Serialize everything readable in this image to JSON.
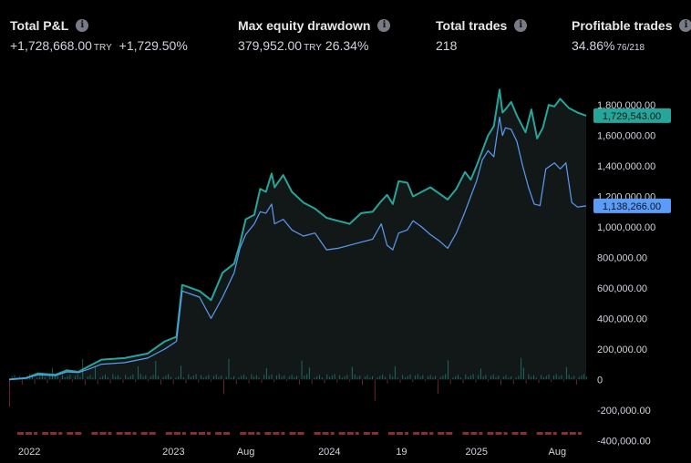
{
  "stats": {
    "total_pl": {
      "label": "Total P&L",
      "value": "+1,728,668.00",
      "currency": "TRY",
      "percent": "+1,729.50%"
    },
    "max_drawdown": {
      "label": "Max equity drawdown",
      "value": "379,952.00",
      "currency": "TRY",
      "percent": "26.34%"
    },
    "total_trades": {
      "label": "Total trades",
      "value": "218"
    },
    "profitable_trades": {
      "label": "Profitable trades",
      "value": "34.86%",
      "fraction": "76/218"
    }
  },
  "info_glyph": "i",
  "chart_data": {
    "type": "line",
    "y_tick_labels": [
      "1,800,000.00",
      "1,600,000.00",
      "1,400,000.00",
      "1,200,000.00",
      "1,000,000.00",
      "800,000.00",
      "600,000.00",
      "400,000.00",
      "200,000.00",
      "0",
      "-200,000.00",
      "-400,000.00"
    ],
    "y_ticks": [
      1800000,
      1600000,
      1400000,
      1200000,
      1000000,
      800000,
      600000,
      400000,
      200000,
      0,
      -200000,
      -400000
    ],
    "ylim": [
      -440000,
      1950000
    ],
    "x_tick_labels": [
      {
        "label": "2022",
        "t": 0.035
      },
      {
        "label": "2023",
        "t": 0.285
      },
      {
        "label": "Aug",
        "t": 0.41
      },
      {
        "label": "2024",
        "t": 0.555
      },
      {
        "label": "19",
        "t": 0.68
      },
      {
        "label": "2025",
        "t": 0.81
      },
      {
        "label": "Aug",
        "t": 0.95
      }
    ],
    "series": [
      {
        "color": "#26a69a",
        "last_value_label": "1,729,543.00",
        "values": [
          [
            0,
            0
          ],
          [
            0.03,
            10000
          ],
          [
            0.05,
            40000
          ],
          [
            0.08,
            30000
          ],
          [
            0.1,
            60000
          ],
          [
            0.12,
            50000
          ],
          [
            0.14,
            90000
          ],
          [
            0.16,
            130000
          ],
          [
            0.2,
            140000
          ],
          [
            0.24,
            170000
          ],
          [
            0.27,
            250000
          ],
          [
            0.29,
            280000
          ],
          [
            0.3,
            620000
          ],
          [
            0.33,
            580000
          ],
          [
            0.35,
            520000
          ],
          [
            0.37,
            700000
          ],
          [
            0.39,
            760000
          ],
          [
            0.4,
            890000
          ],
          [
            0.41,
            1050000
          ],
          [
            0.425,
            1080000
          ],
          [
            0.435,
            1250000
          ],
          [
            0.445,
            1230000
          ],
          [
            0.455,
            1350000
          ],
          [
            0.46,
            1260000
          ],
          [
            0.475,
            1340000
          ],
          [
            0.49,
            1230000
          ],
          [
            0.51,
            1160000
          ],
          [
            0.53,
            1120000
          ],
          [
            0.55,
            1060000
          ],
          [
            0.57,
            1040000
          ],
          [
            0.59,
            1020000
          ],
          [
            0.61,
            1090000
          ],
          [
            0.63,
            1100000
          ],
          [
            0.645,
            1170000
          ],
          [
            0.655,
            1210000
          ],
          [
            0.665,
            1150000
          ],
          [
            0.675,
            1300000
          ],
          [
            0.69,
            1290000
          ],
          [
            0.7,
            1200000
          ],
          [
            0.715,
            1230000
          ],
          [
            0.73,
            1260000
          ],
          [
            0.745,
            1220000
          ],
          [
            0.76,
            1180000
          ],
          [
            0.775,
            1250000
          ],
          [
            0.79,
            1360000
          ],
          [
            0.8,
            1310000
          ],
          [
            0.81,
            1400000
          ],
          [
            0.82,
            1500000
          ],
          [
            0.83,
            1600000
          ],
          [
            0.84,
            1660000
          ],
          [
            0.85,
            1900000
          ],
          [
            0.855,
            1750000
          ],
          [
            0.86,
            1770000
          ],
          [
            0.87,
            1820000
          ],
          [
            0.88,
            1730000
          ],
          [
            0.895,
            1620000
          ],
          [
            0.905,
            1770000
          ],
          [
            0.915,
            1580000
          ],
          [
            0.925,
            1650000
          ],
          [
            0.935,
            1800000
          ],
          [
            0.945,
            1790000
          ],
          [
            0.955,
            1840000
          ],
          [
            0.97,
            1780000
          ],
          [
            0.985,
            1750000
          ],
          [
            1.0,
            1729543
          ]
        ]
      },
      {
        "color": "#5b9cf6",
        "last_value_label": "1,138,266.00",
        "values": [
          [
            0,
            0
          ],
          [
            0.03,
            10000
          ],
          [
            0.05,
            30000
          ],
          [
            0.08,
            25000
          ],
          [
            0.1,
            50000
          ],
          [
            0.12,
            45000
          ],
          [
            0.14,
            70000
          ],
          [
            0.16,
            100000
          ],
          [
            0.2,
            110000
          ],
          [
            0.24,
            140000
          ],
          [
            0.27,
            200000
          ],
          [
            0.29,
            250000
          ],
          [
            0.3,
            580000
          ],
          [
            0.33,
            540000
          ],
          [
            0.35,
            400000
          ],
          [
            0.37,
            540000
          ],
          [
            0.39,
            700000
          ],
          [
            0.4,
            860000
          ],
          [
            0.41,
            950000
          ],
          [
            0.425,
            1020000
          ],
          [
            0.435,
            1100000
          ],
          [
            0.445,
            1090000
          ],
          [
            0.455,
            1150000
          ],
          [
            0.46,
            1020000
          ],
          [
            0.475,
            1050000
          ],
          [
            0.49,
            980000
          ],
          [
            0.51,
            940000
          ],
          [
            0.53,
            960000
          ],
          [
            0.55,
            850000
          ],
          [
            0.57,
            860000
          ],
          [
            0.59,
            880000
          ],
          [
            0.61,
            900000
          ],
          [
            0.63,
            920000
          ],
          [
            0.645,
            1020000
          ],
          [
            0.655,
            880000
          ],
          [
            0.665,
            850000
          ],
          [
            0.675,
            960000
          ],
          [
            0.69,
            980000
          ],
          [
            0.7,
            1040000
          ],
          [
            0.715,
            1000000
          ],
          [
            0.73,
            950000
          ],
          [
            0.745,
            910000
          ],
          [
            0.76,
            860000
          ],
          [
            0.775,
            960000
          ],
          [
            0.79,
            1100000
          ],
          [
            0.8,
            1200000
          ],
          [
            0.81,
            1300000
          ],
          [
            0.82,
            1440000
          ],
          [
            0.83,
            1500000
          ],
          [
            0.84,
            1460000
          ],
          [
            0.85,
            1720000
          ],
          [
            0.855,
            1600000
          ],
          [
            0.86,
            1650000
          ],
          [
            0.87,
            1640000
          ],
          [
            0.88,
            1560000
          ],
          [
            0.89,
            1400000
          ],
          [
            0.9,
            1260000
          ],
          [
            0.91,
            1150000
          ],
          [
            0.92,
            1140000
          ],
          [
            0.93,
            1380000
          ],
          [
            0.945,
            1420000
          ],
          [
            0.955,
            1380000
          ],
          [
            0.965,
            1420000
          ],
          [
            0.975,
            1160000
          ],
          [
            0.985,
            1130000
          ],
          [
            1.0,
            1138266
          ]
        ]
      }
    ],
    "trade_bars": {
      "color": "#8b2d35",
      "positive_color": "#26a69a"
    },
    "grid": false,
    "legend": "none"
  }
}
